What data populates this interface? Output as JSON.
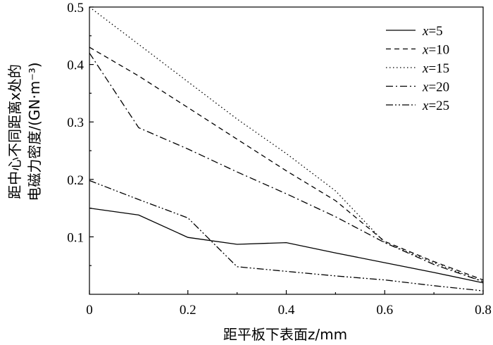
{
  "chart_data": {
    "type": "line",
    "xlabel": "距平板下表面z/mm",
    "ylabel_line1": "距中心不同距离x处的",
    "ylabel_line2": "电磁力密度/(GN·m⁻³)",
    "xlim": [
      0,
      0.8
    ],
    "ylim": [
      0,
      0.5
    ],
    "x_ticks": [
      "0",
      "0.2",
      "0.4",
      "0.6",
      "0.8"
    ],
    "y_ticks": [
      "0.1",
      "0.2",
      "0.3",
      "0.4",
      "0.5"
    ],
    "grid": false,
    "legend_position": "top-right",
    "series": [
      {
        "name": "x=5",
        "name_italic": "x",
        "name_rest": "=5",
        "dash": "none",
        "x": [
          0,
          0.1,
          0.2,
          0.3,
          0.4,
          0.5,
          0.6,
          0.7,
          0.8
        ],
        "y": [
          0.15,
          0.138,
          0.099,
          0.087,
          0.09,
          0.072,
          0.055,
          0.038,
          0.02
        ]
      },
      {
        "name": "x=10",
        "name_italic": "x",
        "name_rest": "=10",
        "dash": "7,5",
        "x": [
          0,
          0.1,
          0.2,
          0.3,
          0.4,
          0.5,
          0.6,
          0.7,
          0.8
        ],
        "y": [
          0.43,
          0.38,
          0.325,
          0.27,
          0.215,
          0.163,
          0.092,
          0.057,
          0.025
        ]
      },
      {
        "name": "x=15",
        "name_italic": "x",
        "name_rest": "=15",
        "dash": "1.5,3.5",
        "x": [
          0,
          0.1,
          0.2,
          0.3,
          0.4,
          0.5,
          0.6,
          0.7,
          0.8
        ],
        "y": [
          0.5,
          0.435,
          0.37,
          0.305,
          0.245,
          0.18,
          0.09,
          0.055,
          0.022
        ]
      },
      {
        "name": "x=20",
        "name_italic": "x",
        "name_rest": "=20",
        "dash": "10,4,2,4",
        "x": [
          0,
          0.1,
          0.2,
          0.3,
          0.4,
          0.5,
          0.6,
          0.7,
          0.8
        ],
        "y": [
          0.42,
          0.29,
          0.253,
          0.213,
          0.175,
          0.135,
          0.09,
          0.052,
          0.022
        ]
      },
      {
        "name": "x=25",
        "name_italic": "x",
        "name_rest": "=25",
        "dash": "10,3,2,3,2,3",
        "x": [
          0,
          0.1,
          0.2,
          0.3,
          0.4,
          0.5,
          0.6,
          0.7,
          0.8
        ],
        "y": [
          0.198,
          0.165,
          0.133,
          0.048,
          0.04,
          0.032,
          0.025,
          0.015,
          0.006
        ]
      }
    ]
  }
}
